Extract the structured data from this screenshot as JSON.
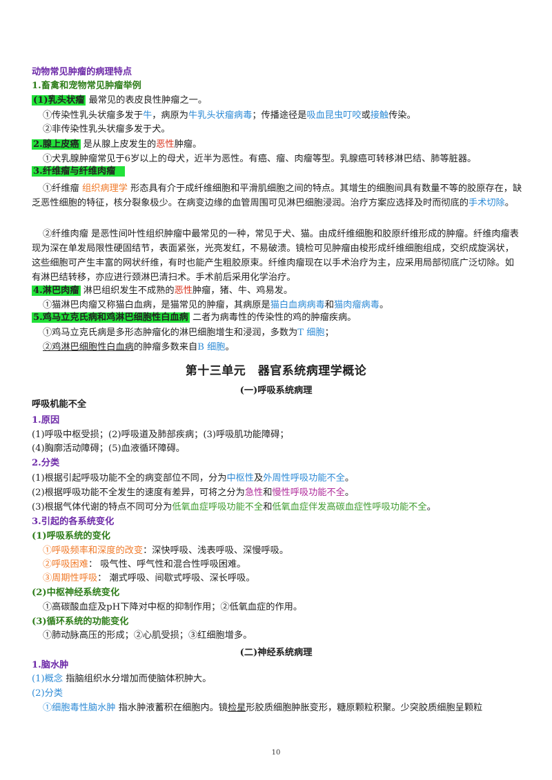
{
  "heading": "动物常见肿瘤的病理特点",
  "s1_title": "1.畜禽和宠物常见肿瘤举例",
  "t1": {
    "hl": "(1)乳头状瘤",
    "rest": " 最常见的表皮良性肿瘤之一。"
  },
  "t1a": {
    "a": "①传染性乳头状瘤多发于",
    "b": "牛",
    "c": "，病原为",
    "d": "牛乳头状瘤病毒",
    "e": "；传播途径是",
    "f": "吸血昆虫叮咬",
    "g": "或",
    "h": "接触",
    "i": "传染。"
  },
  "t1b": "②非传染性乳头状瘤多发于犬。",
  "t2": {
    "hl": "2.腺上皮癌",
    "a": " 是从腺上皮发生的",
    "b": "恶性",
    "c": "肿瘤。"
  },
  "t2a": "①犬乳腺肿瘤常见于6岁以上的母犬，近半为恶性。有癌、瘤、肉瘤等型。乳腺癌可转移淋巴结、肺等脏器。",
  "t3": {
    "hl": "3.纤维瘤与纤维肉瘤"
  },
  "p1": {
    "a": "①纤维瘤 ",
    "b": "组织病理学",
    "c": " 形态具有介于成纤维细胞和平滑肌细胞之间的特点。其增生的细胞间具有数量不等的胶原存在，缺乏恶性细胞的特征，核分裂象极少。在病变边缘的血管周围可见淋巴细胞浸润。治疗方案应选择及时而彻底的",
    "d": "手术切除",
    "e": "。"
  },
  "p2": "②纤维肉瘤 是恶性间叶性组织肿瘤中最常见的一种，常见于犬、猫。由成纤维细胞和胶原纤维形成的肿瘤。纤维肉瘤表现为深在单发局限性硬固结节，表面紧张，光亮发红，不易破溃。镜检可见肿瘤由梭形成纤维细胞组成，交织成旋涡状，这些细胞可产生丰富的网状纤维，有时也能产生粗胶原束。纤维肉瘤现在以手术治疗为主，应采用局部彻底广泛切除。如有淋巴结转移，亦应进行颈淋巴清扫术。手术前后采用化学治疗。",
  "t4": {
    "hl": "4.淋巴肉瘤",
    "a": " 淋巴组织发生不成熟的",
    "b": "恶性",
    "c": "肿瘤，猪、牛、鸡易发。"
  },
  "t4a": {
    "a": "①猫淋巴肉瘤又称猫白血病，是猫常见的肿瘤，其病原是",
    "b": "猫白血病病毒",
    "c": "和",
    "d": "猫肉瘤病毒",
    "e": "。"
  },
  "t5": {
    "hl": "5.鸡马立克氏病和鸡淋巴细胞性白血病",
    "a": " 二者为病毒性的传染性的鸡的肿瘤疾病。"
  },
  "t5a": {
    "a": "①鸡马立克氏病是多形态肿瘤化的淋巴细胞增生和浸润，多数为",
    "b": "T 细胞",
    "c": "；"
  },
  "t5b": {
    "a": "②鸡淋巴细胞性白血病",
    "b": "的肿瘤多数来自",
    "c": "B 细胞",
    "d": "。"
  },
  "unit_title": "第十三单元　器官系统病理学概论",
  "sec1": "(一)呼吸系统病理",
  "r_title": "呼吸机能不全",
  "r1": "1.原因",
  "r1a": "(1)呼吸中枢受损；(2)呼吸道及肺部疾病；(3)呼吸肌功能障碍；",
  "r1b": "(4)胸廓活动障碍；(5)血液循环障碍。",
  "r2": "2.分类",
  "r2a": {
    "a": "(1)根据引起呼吸功能不全的病变部位不同，分为",
    "b": "中枢性",
    "c": "及",
    "d": "外周性呼吸功能不全",
    "e": "。"
  },
  "r2b": {
    "a": "(2)根据呼吸功能不全发生的速度有差异，可将之分为",
    "b": "急性",
    "c": "和",
    "d": "慢性呼吸功能不全",
    "e": "。"
  },
  "r2c": {
    "a": "(3)根据气体代谢的特点不同可分为",
    "b": "低氧血症呼吸功能不全",
    "c": "和",
    "d": "低氧血症伴发高碳血症性呼吸功能不全",
    "e": "。"
  },
  "r3": "3.引起的各系统变化",
  "r3_1": "(1)呼吸系统的变化",
  "r3_1a": {
    "a": "①呼吸频率和深度的改变",
    "b": "：深快呼吸、浅表呼吸、深慢呼吸。"
  },
  "r3_1b": {
    "a": "②呼吸困难",
    "b": "：  吸气性、呼气性和混合性呼吸困难。"
  },
  "r3_1c": {
    "a": "③周期性呼吸",
    "b": "：   潮式呼吸、间歇式呼吸、深长呼吸。"
  },
  "r3_2": "(2)中枢神经系统变化",
  "r3_2a": "①高碳酸血症及pH下降对中枢的抑制作用；②低氧血症的作用。",
  "r3_3": "(3)循环系统的功能变化",
  "r3_3a": "①肺动脉高压的形成；②心肌受损；③红细胞增多。",
  "sec2": "(二)神经系统病理",
  "n1": "1.脑水肿",
  "n1a": {
    "a": "(1)概念",
    "b": " 指脑组织水分增加而使脑体积肿大。"
  },
  "n1b": "(2)分类",
  "n1c": {
    "a": "①细胞毒性脑水肿",
    "b": " 指水肿液蓄积在细胞内。镜",
    "c": "检星",
    "d": "形胶质细胞肿胀变形，糖原颗粒积聚。少突胶质细胞呈颗粒"
  },
  "page_number": "10"
}
